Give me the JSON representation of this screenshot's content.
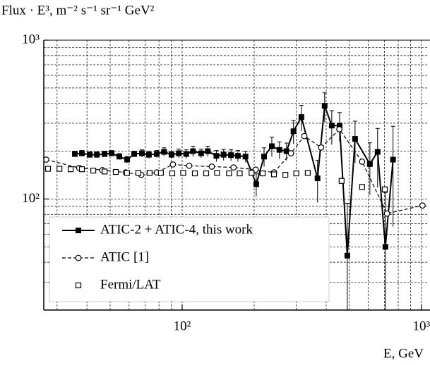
{
  "chart_data": {
    "type": "line",
    "y_label": "Flux · E³, m⁻² s⁻¹ sr⁻¹ GeV²",
    "x_label": "E, GeV",
    "xscale": "log",
    "yscale": "log",
    "grid": true,
    "legend": "lower left",
    "xlim": [
      26.4,
      1057
    ],
    "ylim": [
      20,
      1000
    ],
    "xticks": [
      {
        "value": 100,
        "label": "10²"
      },
      {
        "value": 1000,
        "label": "10³"
      }
    ],
    "yticks": [
      {
        "value": 100,
        "label": "10²"
      },
      {
        "value": 1000,
        "label": "10³"
      }
    ],
    "xminorticks": [
      30,
      40,
      50,
      60,
      70,
      80,
      90,
      200,
      300,
      400,
      500,
      600,
      700,
      800,
      900
    ],
    "yminorticks": [
      30,
      40,
      50,
      60,
      70,
      80,
      90,
      200,
      300,
      400,
      500,
      600,
      700,
      800,
      900
    ],
    "series": [
      {
        "name": "ATIC-2 + ATIC-4, this work",
        "color": "#000000",
        "line": "solid",
        "marker": "filled-square",
        "x": [
          35.6,
          38.1,
          41.1,
          44.0,
          47.4,
          50.7,
          54.6,
          58.9,
          63.0,
          67.9,
          72.6,
          78.3,
          84.0,
          90.3,
          96.8,
          104,
          111,
          120,
          128,
          139,
          149,
          160,
          171,
          184,
          204,
          220,
          237,
          255,
          273,
          292,
          315,
          368,
          394,
          422,
          455,
          490,
          528,
          609,
          656,
          707,
          761
        ],
        "values": [
          192,
          194,
          190,
          190,
          192,
          194,
          185,
          177,
          192,
          194,
          190,
          192,
          198,
          190,
          194,
          192,
          200,
          194,
          200,
          187,
          190,
          189,
          187,
          185,
          124,
          185,
          215,
          204,
          200,
          267,
          328,
          135,
          386,
          290,
          290,
          44,
          239,
          166,
          198,
          50,
          177
        ],
        "errors": [
          8,
          8,
          8,
          8,
          8,
          8,
          8,
          8,
          8,
          10,
          10,
          10,
          12,
          10,
          12,
          12,
          15,
          12,
          15,
          15,
          15,
          15,
          15,
          15,
          20,
          25,
          30,
          25,
          25,
          45,
          60,
          40,
          80,
          70,
          60,
          50,
          70,
          60,
          80,
          60,
          110
        ]
      },
      {
        "name": "ATIC [1]",
        "color": "#000000",
        "line": "dashed",
        "marker": "circle",
        "x": [
          27.0,
          37.1,
          46.4,
          58.1,
          67.5,
          78.3,
          91.5,
          107,
          133,
          164,
          203,
          242,
          285,
          324,
          381,
          454,
          565,
          718,
          1010
        ],
        "values": [
          177,
          157,
          152,
          147,
          142,
          147,
          165,
          162,
          160,
          158,
          153,
          147,
          194,
          249,
          211,
          275,
          172,
          81,
          91
        ]
      },
      {
        "name": "Fermi/LAT",
        "color": "#000000",
        "line": "none",
        "marker": "square",
        "x": [
          27.5,
          30.7,
          34.2,
          38.1,
          42.5,
          47.4,
          52.8,
          58.8,
          65.6,
          73.1,
          81.5,
          90.9,
          101,
          113,
          126,
          140,
          157,
          174,
          195,
          217,
          242,
          270,
          300,
          335,
          464,
          565,
          703
        ],
        "values": [
          155,
          155,
          154,
          154,
          151,
          149,
          148,
          146,
          146,
          146,
          146,
          145,
          146,
          145,
          145,
          146,
          145,
          145,
          146,
          145,
          143,
          142,
          145,
          146,
          130,
          119,
          115
        ]
      }
    ]
  }
}
